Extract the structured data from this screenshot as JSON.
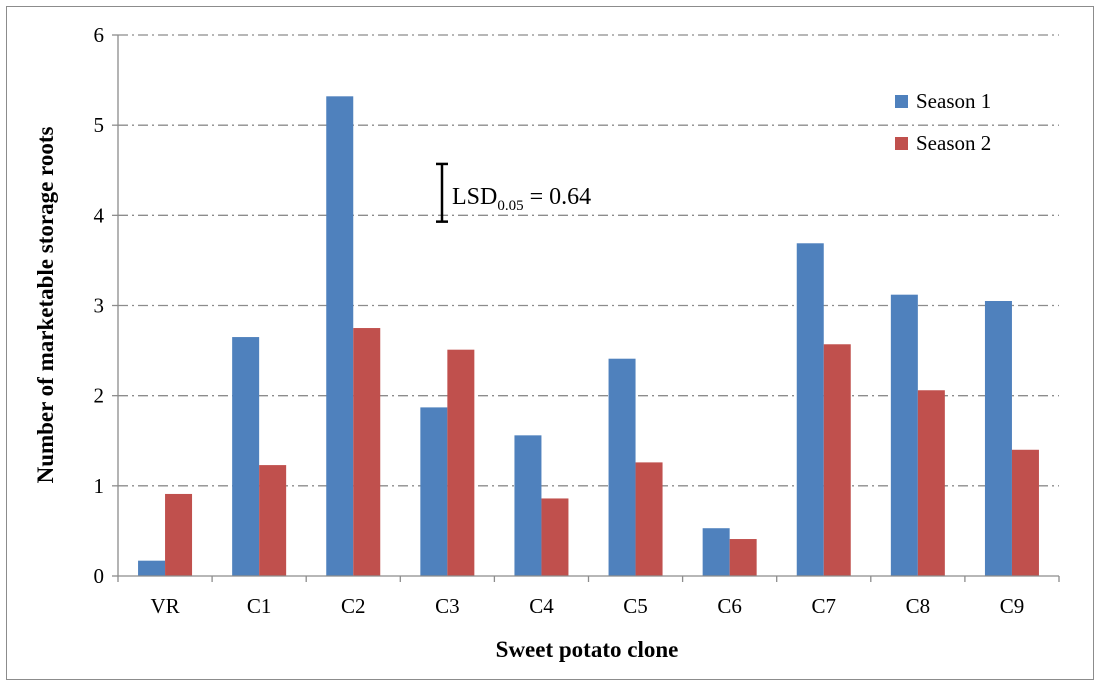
{
  "chart_data": {
    "type": "bar",
    "xlabel": "Sweet potato clone",
    "ylabel": "Number of marketable storage roots",
    "categories": [
      "VR",
      "C1",
      "C2",
      "C3",
      "C4",
      "C5",
      "C6",
      "C7",
      "C8",
      "C9"
    ],
    "series": [
      {
        "name": "Season 1",
        "color": "#4f81bd",
        "values": [
          0.17,
          2.65,
          5.32,
          1.87,
          1.56,
          2.41,
          0.53,
          3.69,
          3.12,
          3.05
        ]
      },
      {
        "name": "Season 2",
        "color": "#c0504d",
        "values": [
          0.91,
          1.23,
          2.75,
          2.51,
          0.86,
          1.26,
          0.41,
          2.57,
          2.06,
          1.4
        ]
      }
    ],
    "ylim": [
      0,
      6
    ],
    "yticks": [
      0,
      1,
      2,
      3,
      4,
      5,
      6
    ],
    "grid": true,
    "grid_style": "dash-dot",
    "legend_position": "top-right",
    "annotation": {
      "text": "LSD",
      "subscript": "0.05",
      "suffix": " = 0.64",
      "value": 0.64,
      "position": "top-center"
    }
  }
}
